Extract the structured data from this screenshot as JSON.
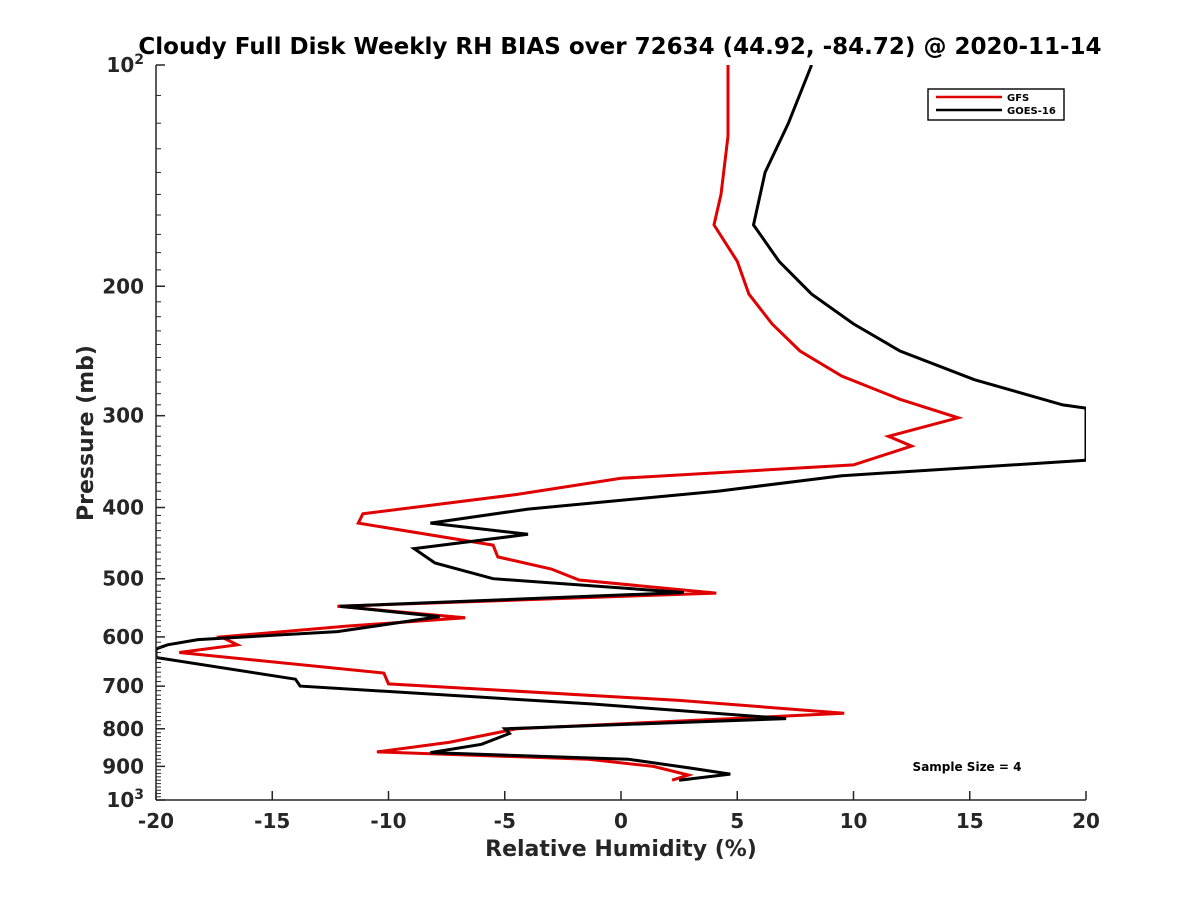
{
  "chart_data": {
    "type": "line",
    "title": "Cloudy Full Disk Weekly RH BIAS over 72634 (44.92, -84.72) @ 2020-11-14",
    "xlabel": "Relative Humidity (%)",
    "ylabel": "Pressure (mb)",
    "xlim": [
      -20,
      20
    ],
    "ylim": [
      100,
      1000
    ],
    "y_scale": "log",
    "y_reversed": true,
    "grid": false,
    "legend_position": "top-right",
    "x_ticks": [
      -20,
      -15,
      -10,
      -5,
      0,
      5,
      10,
      15,
      20
    ],
    "y_ticks": [
      100,
      200,
      300,
      400,
      500,
      600,
      700,
      800,
      900,
      1000
    ],
    "y_tick_labels": [
      {
        "base": "10",
        "exp": "2"
      },
      {
        "base": "200"
      },
      {
        "base": "300"
      },
      {
        "base": "400"
      },
      {
        "base": "500"
      },
      {
        "base": "600"
      },
      {
        "base": "700"
      },
      {
        "base": "800"
      },
      {
        "base": "900"
      },
      {
        "base": "10",
        "exp": "3"
      }
    ],
    "annotation": "Sample Size = 4",
    "series": [
      {
        "name": "GFS",
        "color": "#e00000",
        "points": [
          [
            4.6,
            100
          ],
          [
            4.6,
            125
          ],
          [
            4.3,
            150
          ],
          [
            4.0,
            165
          ],
          [
            5.0,
            185
          ],
          [
            5.5,
            205
          ],
          [
            6.5,
            225
          ],
          [
            7.7,
            245
          ],
          [
            9.5,
            265
          ],
          [
            12.0,
            285
          ],
          [
            14.5,
            302
          ],
          [
            11.5,
            320
          ],
          [
            12.5,
            330
          ],
          [
            10.0,
            350
          ],
          [
            0.0,
            365
          ],
          [
            -4.5,
            384
          ],
          [
            -11.1,
            408
          ],
          [
            -11.3,
            420
          ],
          [
            -5.5,
            450
          ],
          [
            -5.3,
            467
          ],
          [
            -3.0,
            485
          ],
          [
            -1.8,
            502
          ],
          [
            4.1,
            523
          ],
          [
            -12.2,
            545
          ],
          [
            -6.7,
            565
          ],
          [
            -11.8,
            580
          ],
          [
            -17.2,
            600
          ],
          [
            -16.5,
            615
          ],
          [
            -19.0,
            630
          ],
          [
            -10.2,
            672
          ],
          [
            -10.0,
            695
          ],
          [
            2.5,
            732
          ],
          [
            9.6,
            762
          ],
          [
            -4.5,
            800
          ],
          [
            -7.4,
            835
          ],
          [
            -10.5,
            860
          ],
          [
            -1.4,
            880
          ],
          [
            1.4,
            900
          ],
          [
            2.9,
            925
          ],
          [
            2.2,
            940
          ]
        ]
      },
      {
        "name": "GOES-16",
        "color": "#000000",
        "points": [
          [
            8.2,
            100
          ],
          [
            7.2,
            120
          ],
          [
            6.2,
            140
          ],
          [
            5.7,
            165
          ],
          [
            6.8,
            185
          ],
          [
            8.2,
            205
          ],
          [
            10.0,
            225
          ],
          [
            12.0,
            245
          ],
          [
            15.2,
            268
          ],
          [
            19.0,
            290
          ],
          [
            20.0,
            293
          ],
          [
            20.0,
            345
          ],
          [
            9.5,
            362
          ],
          [
            4.2,
            380
          ],
          [
            -4.0,
            402
          ],
          [
            -8.2,
            420
          ],
          [
            -4.0,
            435
          ],
          [
            -8.9,
            455
          ],
          [
            -8.0,
            476
          ],
          [
            -5.5,
            500
          ],
          [
            2.7,
            522
          ],
          [
            -12.1,
            545
          ],
          [
            -7.8,
            563
          ],
          [
            -12.2,
            590
          ],
          [
            -18.2,
            605
          ],
          [
            -19.5,
            615
          ],
          [
            -20.0,
            623
          ],
          [
            -20.0,
            640
          ],
          [
            -14.0,
            685
          ],
          [
            -13.8,
            700
          ],
          [
            -1.3,
            740
          ],
          [
            7.1,
            775
          ],
          [
            -5.0,
            800
          ],
          [
            -4.8,
            812
          ],
          [
            -6.0,
            840
          ],
          [
            -8.2,
            862
          ],
          [
            0.3,
            880
          ],
          [
            3.0,
            905
          ],
          [
            4.7,
            922
          ],
          [
            2.5,
            940
          ]
        ]
      }
    ]
  }
}
